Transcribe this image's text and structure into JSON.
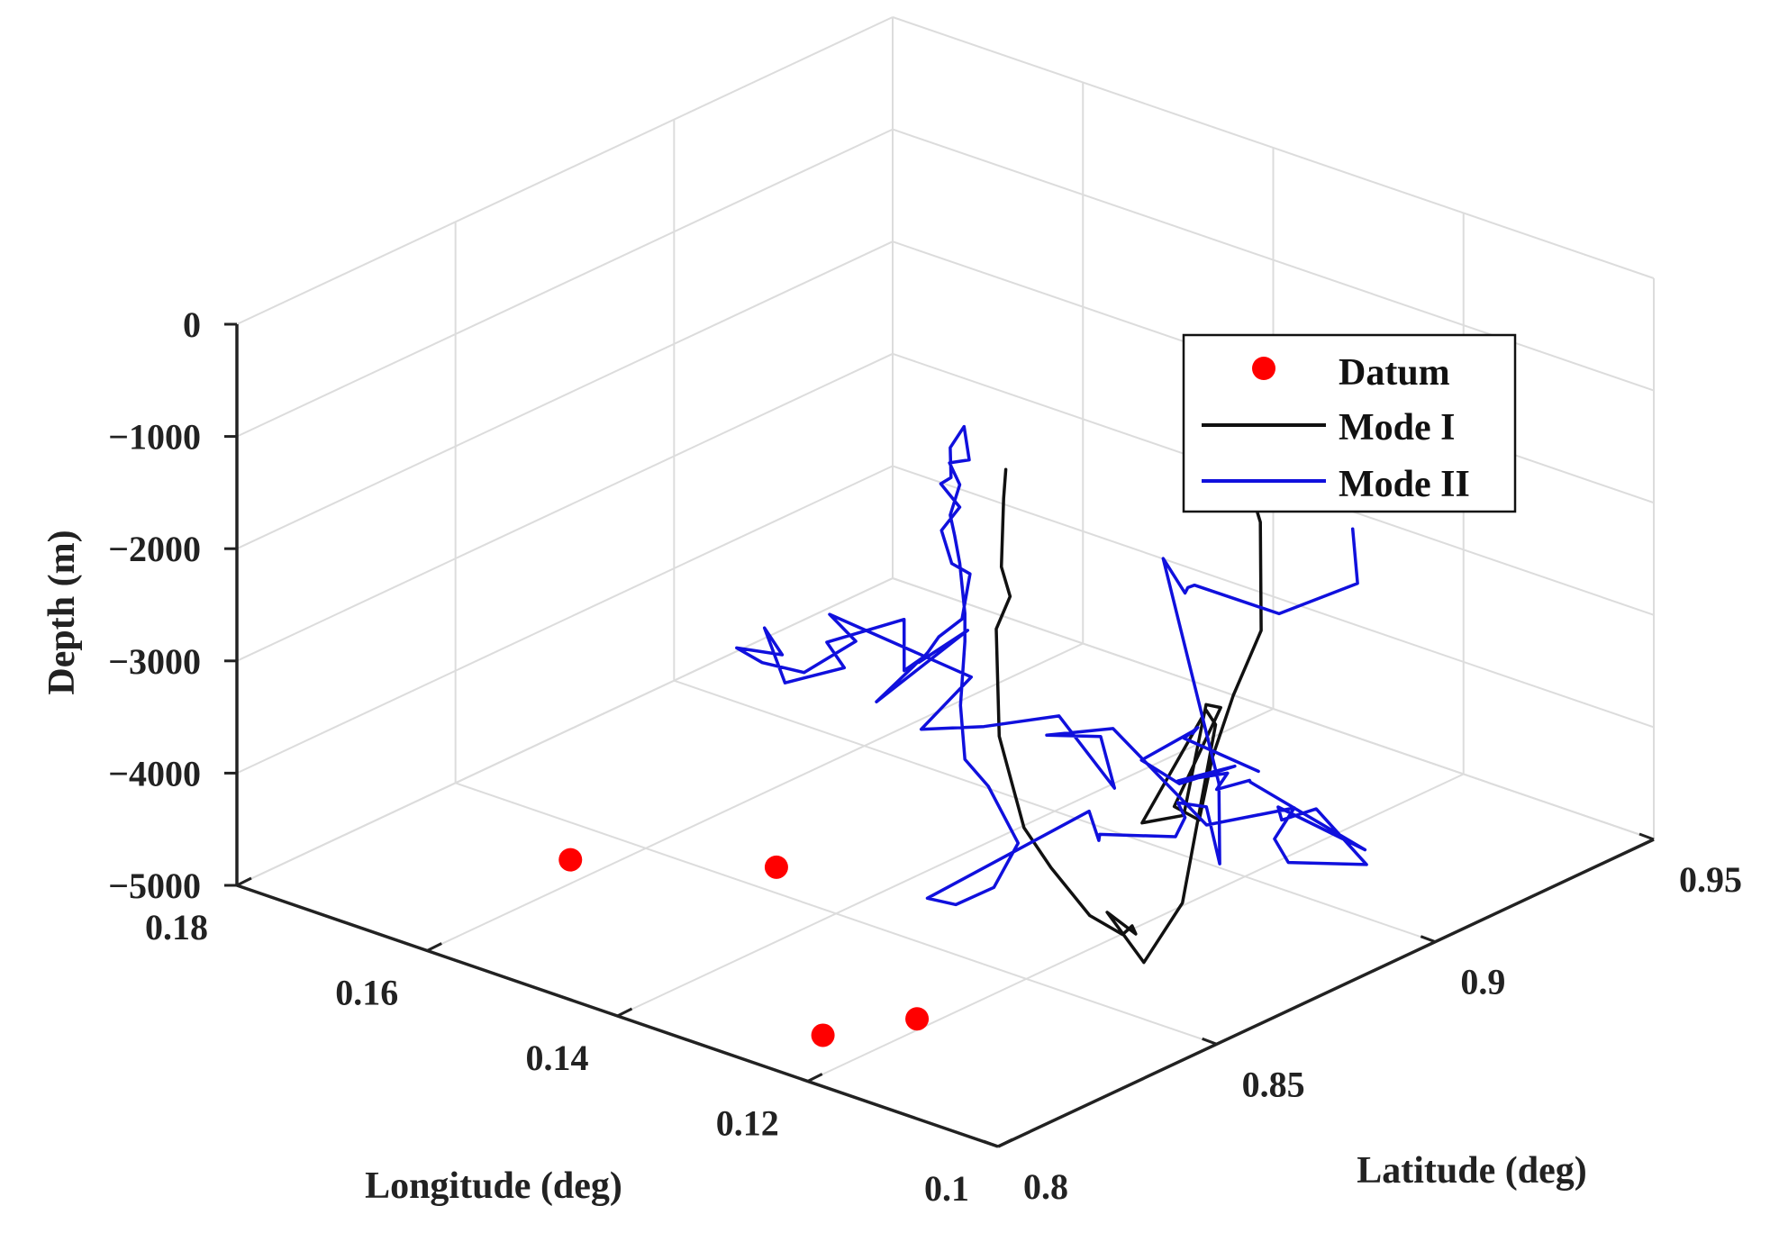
{
  "chart_data": {
    "type": "line3d",
    "xlabel": "Longitude (deg)",
    "ylabel": "Latitude (deg)",
    "zlabel": "Depth (m)",
    "xlim": [
      0.1,
      0.18
    ],
    "ylim": [
      0.8,
      0.95
    ],
    "zlim": [
      -5000,
      0
    ],
    "x_ticks": [
      0.1,
      0.12,
      0.14,
      0.16,
      0.18
    ],
    "x_tick_labels": [
      "0.1",
      "0.12",
      "0.14",
      "0.16",
      "0.18"
    ],
    "y_ticks": [
      0.8,
      0.85,
      0.9,
      0.95
    ],
    "y_tick_labels": [
      "0.8",
      "0.85",
      "0.9",
      "0.95"
    ],
    "z_ticks": [
      0,
      -1000,
      -2000,
      -3000,
      -4000,
      -5000
    ],
    "z_tick_labels": [
      "0",
      "−1000",
      "−2000",
      "−3000",
      "−4000",
      "−5000"
    ],
    "grid": true,
    "legend_position": "top-right",
    "colors": {
      "datum": "#ff0000",
      "mode1": "#111111",
      "mode2": "#1010dd"
    },
    "series": [
      {
        "name": "Datum",
        "kind": "points",
        "points": [
          [
            0.15,
            0.811,
            -4100
          ],
          [
            0.138,
            0.832,
            -4200
          ],
          [
            0.123,
            0.81,
            -4860
          ],
          [
            0.12,
            0.825,
            -4900
          ]
        ]
      },
      {
        "name": "Mode I",
        "kind": "line",
        "points": [
          [
            0.119,
            0.897,
            -1200
          ],
          [
            0.117,
            0.897,
            -1700
          ],
          [
            0.116,
            0.895,
            -2600
          ],
          [
            0.118,
            0.893,
            -3200
          ],
          [
            0.117,
            0.886,
            -3600
          ],
          [
            0.117,
            0.883,
            -4100
          ],
          [
            0.121,
            0.886,
            -4150
          ],
          [
            0.123,
            0.901,
            -3600
          ],
          [
            0.125,
            0.902,
            -3650
          ],
          [
            0.12,
            0.886,
            -4200
          ],
          [
            0.123,
            0.883,
            -4300
          ],
          [
            0.125,
            0.902,
            -3700
          ],
          [
            0.124,
            0.902,
            -3800
          ],
          [
            0.116,
            0.877,
            -4700
          ],
          [
            0.115,
            0.866,
            -5000
          ],
          [
            0.123,
            0.875,
            -4950
          ],
          [
            0.117,
            0.8685,
            -4850
          ],
          [
            0.119,
            0.872,
            -4900
          ],
          [
            0.117,
            0.8655,
            -4800
          ],
          [
            0.12,
            0.8645,
            -4700
          ],
          [
            0.122,
            0.86,
            -4250
          ],
          [
            0.123,
            0.856,
            -3850
          ],
          [
            0.124,
            0.8525,
            -3000
          ],
          [
            0.125,
            0.854,
            -2100
          ],
          [
            0.124,
            0.855,
            -1800
          ],
          [
            0.124,
            0.853,
            -1500
          ],
          [
            0.124,
            0.8535,
            -900
          ],
          [
            0.124,
            0.854,
            -650
          ]
        ]
      },
      {
        "name": "Mode II",
        "kind": "line",
        "points": [
          [
            0.088,
            0.855,
            -150
          ],
          [
            0.093,
            0.867,
            -1000
          ],
          [
            0.104,
            0.873,
            -1700
          ],
          [
            0.123,
            0.895,
            -2400
          ],
          [
            0.126,
            0.9,
            -2600
          ],
          [
            0.124,
            0.895,
            -2500
          ],
          [
            0.124,
            0.89,
            -2100
          ],
          [
            0.114,
            0.881,
            -3650
          ],
          [
            0.113,
            0.879,
            -4300
          ],
          [
            0.119,
            0.889,
            -4150
          ],
          [
            0.122,
            0.889,
            -4200
          ],
          [
            0.124,
            0.895,
            -4500
          ],
          [
            0.125,
            0.895,
            -4700
          ],
          [
            0.127,
            0.882,
            -4500
          ],
          [
            0.128,
            0.884,
            -4620
          ],
          [
            0.135,
            0.897,
            -4800
          ],
          [
            0.135,
            0.86,
            -4900
          ],
          [
            0.132,
            0.86,
            -4870
          ],
          [
            0.128,
            0.86,
            -4600
          ],
          [
            0.125,
            0.859,
            -4100
          ],
          [
            0.124,
            0.85,
            -3400
          ],
          [
            0.126,
            0.849,
            -3200
          ],
          [
            0.126,
            0.848,
            -2700
          ],
          [
            0.126,
            0.849,
            -2150
          ],
          [
            0.126,
            0.849,
            -1900
          ],
          [
            0.127,
            0.85,
            -1500
          ],
          [
            0.128,
            0.851,
            -1300
          ],
          [
            0.128,
            0.85,
            -1100
          ],
          [
            0.127,
            0.85,
            -800
          ],
          [
            0.129,
            0.852,
            -700
          ],
          [
            0.126,
            0.85,
            -550
          ],
          [
            0.127,
            0.851,
            -300
          ],
          [
            0.128,
            0.85,
            -500
          ],
          [
            0.127,
            0.848,
            -700
          ],
          [
            0.129,
            0.85,
            -850
          ],
          [
            0.127,
            0.85,
            -1000
          ],
          [
            0.128,
            0.848,
            -1200
          ],
          [
            0.126,
            0.846,
            -1400
          ],
          [
            0.125,
            0.848,
            -1500
          ],
          [
            0.124,
            0.844,
            -1800
          ],
          [
            0.126,
            0.843,
            -2000
          ],
          [
            0.129,
            0.847,
            -2300
          ],
          [
            0.129,
            0.845,
            -2350
          ],
          [
            0.128,
            0.854,
            -2200
          ],
          [
            0.133,
            0.844,
            -2800
          ],
          [
            0.133,
            0.8545,
            -2600
          ],
          [
            0.131,
            0.846,
            -2500
          ],
          [
            0.134,
            0.8525,
            -2250
          ],
          [
            0.135,
            0.837,
            -2200
          ],
          [
            0.135,
            0.841,
            -2500
          ],
          [
            0.141,
            0.8405,
            -2800
          ],
          [
            0.145,
            0.8445,
            -2500
          ],
          [
            0.139,
            0.8355,
            -2400
          ],
          [
            0.147,
            0.8425,
            -2700
          ],
          [
            0.145,
            0.844,
            -2800
          ],
          [
            0.139,
            0.8405,
            -2650
          ],
          [
            0.137,
            0.848,
            -2450
          ],
          [
            0.137,
            0.842,
            -2100
          ],
          [
            0.129,
            0.857,
            -2700
          ],
          [
            0.126,
            0.839,
            -2750
          ],
          [
            0.124,
            0.849,
            -2850
          ],
          [
            0.123,
            0.864,
            -3000
          ],
          [
            0.119,
            0.868,
            -3600
          ],
          [
            0.12,
            0.867,
            -3150
          ],
          [
            0.122,
            0.859,
            -3050
          ],
          [
            0.121,
            0.872,
            -3200
          ],
          [
            0.113,
            0.876,
            -3900
          ],
          [
            0.107,
            0.883,
            -3700
          ],
          [
            0.11,
            0.885,
            -4100
          ],
          [
            0.109,
            0.886,
            -4300
          ],
          [
            0.104,
            0.893,
            -4300
          ],
          [
            0.107,
            0.888,
            -3800
          ],
          [
            0.112,
            0.891,
            -4100
          ],
          [
            0.111,
            0.888,
            -3900
          ],
          [
            0.106,
            0.897,
            -4300
          ],
          [
            0.113,
            0.886,
            -3700
          ],
          [
            0.114,
            0.888,
            -3750
          ],
          [
            0.117,
            0.887,
            -3900
          ],
          [
            0.117,
            0.8895,
            -3800
          ],
          [
            0.119,
            0.8825,
            -3800
          ],
          [
            0.116,
            0.889,
            -3700
          ],
          [
            0.12,
            0.885,
            -3900
          ],
          [
            0.121,
            0.8785,
            -3600
          ],
          [
            0.118,
            0.884,
            -3350
          ],
          [
            0.117,
            0.8815,
            -3300
          ],
          [
            0.116,
            0.8805,
            -3200
          ],
          [
            0.114,
            0.873,
            -3100
          ],
          [
            0.111,
            0.8835,
            -3500
          ]
        ]
      }
    ]
  }
}
